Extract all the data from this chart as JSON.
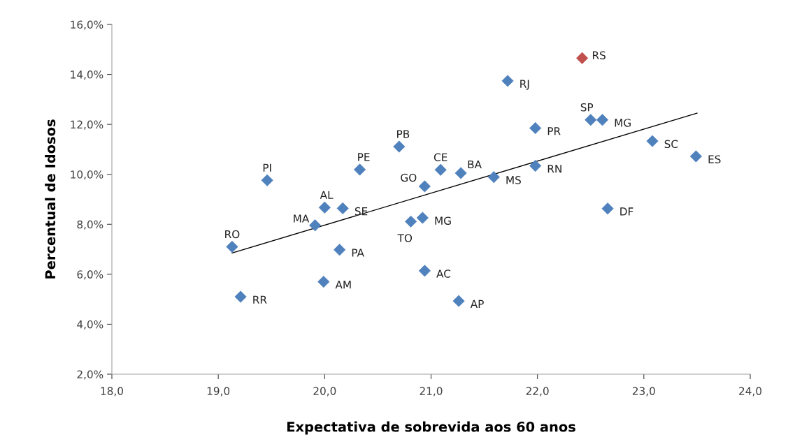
{
  "chart_data": {
    "type": "scatter",
    "xlabel": "Expectativa de sobrevida aos 60 anos",
    "ylabel": "Percentual de Idosos",
    "grid": false,
    "xlim": [
      18,
      24
    ],
    "xticks": [
      {
        "value": 18,
        "label": "18,0"
      },
      {
        "value": 19,
        "label": "19,0"
      },
      {
        "value": 20,
        "label": "20,0"
      },
      {
        "value": 21,
        "label": "21,0"
      },
      {
        "value": 22,
        "label": "22,0"
      },
      {
        "value": 23,
        "label": "23,0"
      },
      {
        "value": 24,
        "label": "24,0"
      }
    ],
    "ylim": [
      2,
      16
    ],
    "yticks": [
      {
        "value": 2,
        "label": "2,0%"
      },
      {
        "value": 4,
        "label": "4,0%"
      },
      {
        "value": 6,
        "label": "6,0%"
      },
      {
        "value": 8,
        "label": "8,0%"
      },
      {
        "value": 10,
        "label": "10,0%"
      },
      {
        "value": 12,
        "label": "12,0%"
      },
      {
        "value": 14,
        "label": "14,0%"
      },
      {
        "value": 16,
        "label": "16,0%"
      }
    ],
    "series": [
      {
        "marker": "diamond",
        "x": [
          19.13,
          19.21,
          19.46,
          19.91,
          20.0,
          20.17,
          20.33,
          20.7,
          20.94,
          20.81,
          20.92,
          20.14,
          19.99,
          20.94,
          21.09,
          21.28,
          21.59,
          21.98,
          21.98,
          21.72,
          22.42,
          22.5,
          22.61,
          23.08,
          23.49,
          22.66,
          21.26
        ],
        "values": [
          7.1,
          5.1,
          9.76,
          7.96,
          8.67,
          8.64,
          10.19,
          11.11,
          9.52,
          8.11,
          8.26,
          6.98,
          5.7,
          6.14,
          10.18,
          10.05,
          9.89,
          10.34,
          11.85,
          13.74,
          14.65,
          12.18,
          12.18,
          11.33,
          10.72,
          8.63,
          4.93
        ],
        "colors": [
          "#4f81bd",
          "#4f81bd",
          "#4f81bd",
          "#4f81bd",
          "#4f81bd",
          "#4f81bd",
          "#4f81bd",
          "#4f81bd",
          "#4f81bd",
          "#4f81bd",
          "#4f81bd",
          "#4f81bd",
          "#4f81bd",
          "#4f81bd",
          "#4f81bd",
          "#4f81bd",
          "#4f81bd",
          "#4f81bd",
          "#4f81bd",
          "#4f81bd",
          "#c0504d",
          "#4f81bd",
          "#4f81bd",
          "#4f81bd",
          "#4f81bd",
          "#4f81bd",
          "#4f81bd"
        ]
      },
      {
        "type": "line",
        "marker": "none",
        "color": "#000000",
        "x": [
          19.13,
          23.5
        ],
        "values": [
          6.85,
          12.45
        ]
      }
    ],
    "annotations": [
      {
        "text": "RO",
        "x": 19.13,
        "y": 7.1
      },
      {
        "text": "RR",
        "x": 19.21,
        "y": 5.1
      },
      {
        "text": "PI",
        "x": 19.46,
        "y": 9.76
      },
      {
        "text": "MA",
        "x": 19.91,
        "y": 7.96
      },
      {
        "text": "AL",
        "x": 20.0,
        "y": 8.67
      },
      {
        "text": "SE",
        "x": 20.17,
        "y": 8.64
      },
      {
        "text": "PE",
        "x": 20.33,
        "y": 10.19
      },
      {
        "text": "PB",
        "x": 20.7,
        "y": 11.11
      },
      {
        "text": "GO",
        "x": 20.94,
        "y": 9.52
      },
      {
        "text": "TO",
        "x": 20.81,
        "y": 8.11
      },
      {
        "text": "MG",
        "x": 20.92,
        "y": 8.26
      },
      {
        "text": "PA",
        "x": 20.14,
        "y": 6.98
      },
      {
        "text": "AM",
        "x": 19.99,
        "y": 5.7
      },
      {
        "text": "AC",
        "x": 20.94,
        "y": 6.14
      },
      {
        "text": "CE",
        "x": 21.09,
        "y": 10.18
      },
      {
        "text": "BA",
        "x": 21.28,
        "y": 10.05
      },
      {
        "text": "MS",
        "x": 21.59,
        "y": 9.89
      },
      {
        "text": "RN",
        "x": 21.98,
        "y": 10.34
      },
      {
        "text": "PR",
        "x": 21.98,
        "y": 11.85
      },
      {
        "text": "RJ",
        "x": 21.72,
        "y": 13.74
      },
      {
        "text": "RS",
        "x": 22.42,
        "y": 14.65
      },
      {
        "text": "SP",
        "x": 22.5,
        "y": 12.18
      },
      {
        "text": "MG",
        "x": 22.61,
        "y": 12.18
      },
      {
        "text": "SC",
        "x": 23.08,
        "y": 11.33
      },
      {
        "text": "ES",
        "x": 23.49,
        "y": 10.72
      },
      {
        "text": "DF",
        "x": 22.66,
        "y": 8.63
      },
      {
        "text": "AP",
        "x": 21.26,
        "y": 4.93
      }
    ]
  }
}
